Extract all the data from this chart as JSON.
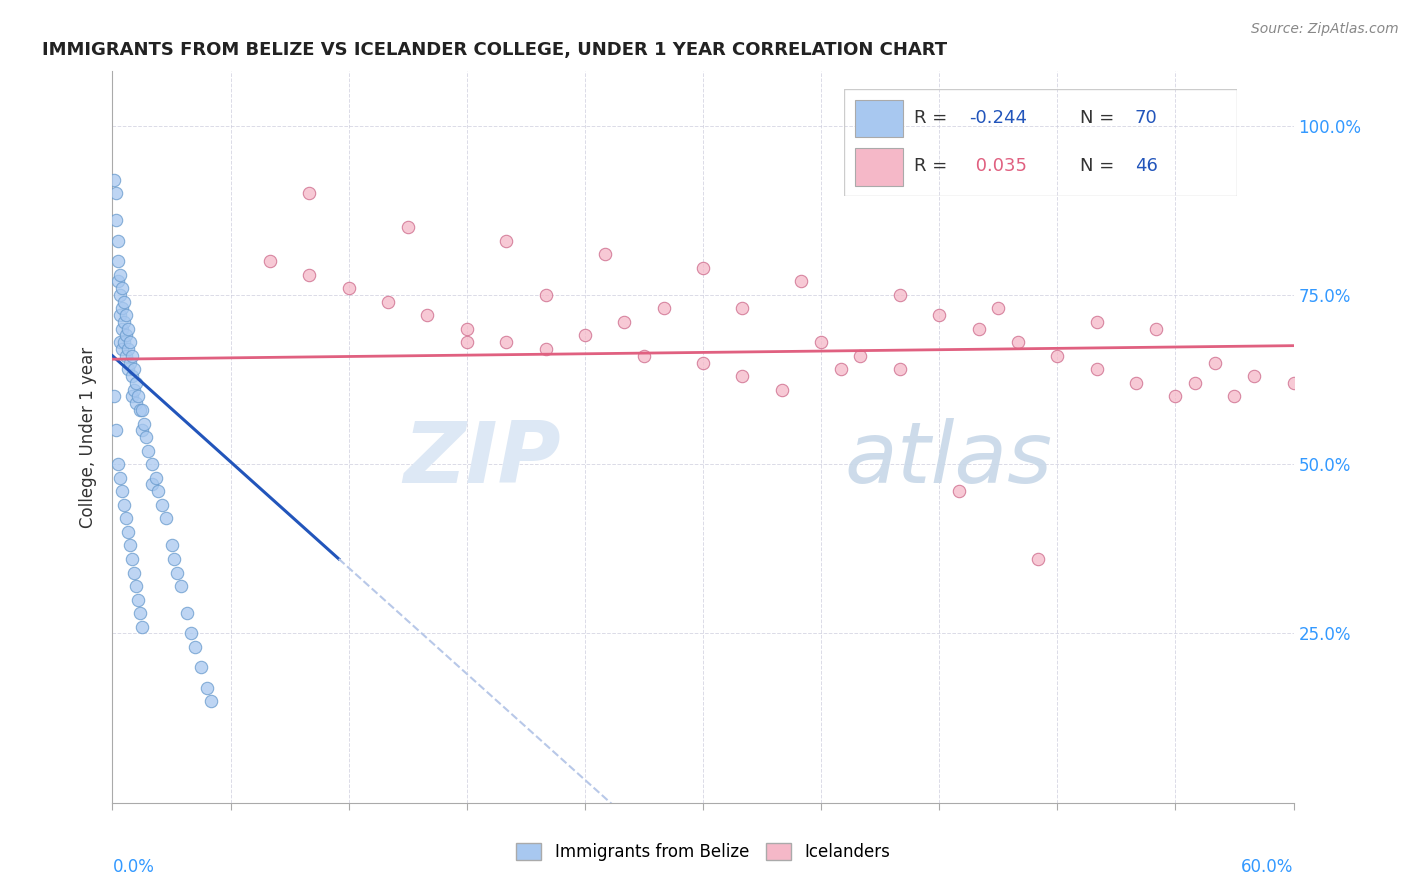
{
  "title": "IMMIGRANTS FROM BELIZE VS ICELANDER COLLEGE, UNDER 1 YEAR CORRELATION CHART",
  "source": "Source: ZipAtlas.com",
  "ylabel": "College, Under 1 year",
  "ytick_labels": [
    "100.0%",
    "75.0%",
    "50.0%",
    "25.0%"
  ],
  "ytick_vals": [
    1.0,
    0.75,
    0.5,
    0.25
  ],
  "xlim": [
    0.0,
    0.6
  ],
  "ylim": [
    0.0,
    1.08
  ],
  "legend_r1": "R = -0.244",
  "legend_n1": "N = 70",
  "legend_r2": "R =  0.035",
  "legend_n2": "N = 46",
  "legend_label1": "Immigrants from Belize",
  "legend_label2": "Icelanders",
  "blue_color": "#a8c8f0",
  "pink_color": "#f5b8c8",
  "blue_line_color": "#2255bb",
  "pink_line_color": "#e06080",
  "dashed_color": "#b8c8e8",
  "r_color_blue": "#2255bb",
  "r_color_pink": "#e06080",
  "n_color": "#2255bb",
  "watermark_zip": "ZIP",
  "watermark_atlas": "atlas",
  "blue_x": [
    0.001,
    0.002,
    0.002,
    0.003,
    0.003,
    0.003,
    0.004,
    0.004,
    0.004,
    0.004,
    0.005,
    0.005,
    0.005,
    0.005,
    0.006,
    0.006,
    0.006,
    0.007,
    0.007,
    0.007,
    0.008,
    0.008,
    0.008,
    0.009,
    0.009,
    0.01,
    0.01,
    0.01,
    0.011,
    0.011,
    0.012,
    0.012,
    0.013,
    0.014,
    0.015,
    0.015,
    0.016,
    0.017,
    0.018,
    0.02,
    0.02,
    0.022,
    0.023,
    0.025,
    0.027,
    0.03,
    0.031,
    0.033,
    0.035,
    0.038,
    0.04,
    0.042,
    0.045,
    0.048,
    0.05,
    0.003,
    0.004,
    0.005,
    0.006,
    0.007,
    0.008,
    0.009,
    0.01,
    0.011,
    0.012,
    0.013,
    0.014,
    0.015,
    0.002,
    0.001
  ],
  "blue_y": [
    0.92,
    0.9,
    0.86,
    0.83,
    0.8,
    0.77,
    0.78,
    0.75,
    0.72,
    0.68,
    0.76,
    0.73,
    0.7,
    0.67,
    0.74,
    0.71,
    0.68,
    0.72,
    0.69,
    0.66,
    0.7,
    0.67,
    0.64,
    0.68,
    0.65,
    0.66,
    0.63,
    0.6,
    0.64,
    0.61,
    0.62,
    0.59,
    0.6,
    0.58,
    0.58,
    0.55,
    0.56,
    0.54,
    0.52,
    0.5,
    0.47,
    0.48,
    0.46,
    0.44,
    0.42,
    0.38,
    0.36,
    0.34,
    0.32,
    0.28,
    0.25,
    0.23,
    0.2,
    0.17,
    0.15,
    0.5,
    0.48,
    0.46,
    0.44,
    0.42,
    0.4,
    0.38,
    0.36,
    0.34,
    0.32,
    0.3,
    0.28,
    0.26,
    0.55,
    0.6
  ],
  "pink_x": [
    0.08,
    0.1,
    0.12,
    0.14,
    0.16,
    0.18,
    0.2,
    0.22,
    0.24,
    0.26,
    0.28,
    0.3,
    0.32,
    0.34,
    0.36,
    0.38,
    0.4,
    0.42,
    0.44,
    0.46,
    0.48,
    0.5,
    0.52,
    0.54,
    0.56,
    0.58,
    0.6,
    0.15,
    0.2,
    0.25,
    0.3,
    0.35,
    0.4,
    0.45,
    0.5,
    0.55,
    0.1,
    0.18,
    0.27,
    0.37,
    0.47,
    0.57,
    0.22,
    0.32,
    0.43,
    0.53
  ],
  "pink_y": [
    0.8,
    0.78,
    0.76,
    0.74,
    0.72,
    0.7,
    0.68,
    0.67,
    0.69,
    0.71,
    0.73,
    0.65,
    0.63,
    0.61,
    0.68,
    0.66,
    0.64,
    0.72,
    0.7,
    0.68,
    0.66,
    0.64,
    0.62,
    0.6,
    0.65,
    0.63,
    0.62,
    0.85,
    0.83,
    0.81,
    0.79,
    0.77,
    0.75,
    0.73,
    0.71,
    0.62,
    0.9,
    0.68,
    0.66,
    0.64,
    0.36,
    0.6,
    0.75,
    0.73,
    0.46,
    0.7
  ],
  "blue_line_x0": 0.0,
  "blue_line_x1": 0.115,
  "blue_line_y0": 0.66,
  "blue_line_y1": 0.36,
  "pink_line_x0": 0.0,
  "pink_line_x1": 0.6,
  "pink_line_y0": 0.655,
  "pink_line_y1": 0.675
}
